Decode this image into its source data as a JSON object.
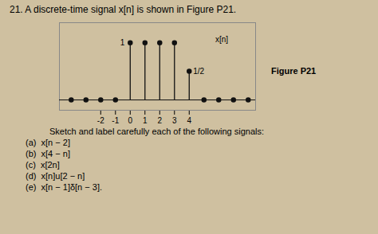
{
  "chart_data": {
    "type": "stem",
    "title": "21. A discrete-time signal x[n] is shown in Figure P21.",
    "subtitle": "Sketch and label carefully each of the following signals:",
    "figure_label": "Figure P21",
    "items": [
      "(a)  x[n − 2]",
      "(b)  x[4 − n]",
      "(c)  x[2n]",
      "(d)  x[n]u[2 − n]",
      "(e)  x[n − 1]δ[n − 3]."
    ],
    "x": [
      0,
      1,
      2,
      3,
      4,
      -4,
      -3,
      -2,
      -1,
      5,
      6,
      7,
      8
    ],
    "values": [
      1,
      1,
      1,
      1,
      0.5,
      0,
      0,
      0,
      0,
      0,
      0,
      0,
      0
    ],
    "xlim": [
      -4.8,
      8.5
    ],
    "xticks": [
      -2,
      -1,
      0,
      1,
      2,
      3,
      4
    ],
    "ylim": [
      -0.18,
      1.35
    ],
    "tick_labels": "x",
    "grid": false,
    "color": "#111111",
    "background": "#cfc0a0",
    "annotations": [
      {
        "text": "1",
        "x": 0,
        "y": 1,
        "side": "left"
      },
      {
        "text": "1/2",
        "x": 4,
        "y": 0.5,
        "side": "right"
      },
      {
        "text": "x[n]",
        "x": 5.5,
        "y": 1.05,
        "side": "right"
      }
    ]
  }
}
